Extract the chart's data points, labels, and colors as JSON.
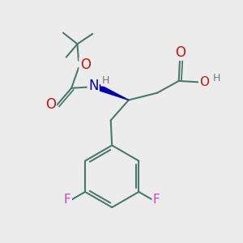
{
  "bg_color": "#ececec",
  "bond_color": "#4a7a6e",
  "bond_width": 1.5,
  "atom_colors": {
    "O": "#cc1100",
    "N": "#0000bb",
    "F": "#cc44bb",
    "H": "#777777",
    "C": "#4a7a6e"
  },
  "font_size_atom": 10,
  "figsize": [
    3.0,
    3.0
  ],
  "dpi": 100,
  "xlim": [
    0,
    10
  ],
  "ylim": [
    0,
    10
  ]
}
